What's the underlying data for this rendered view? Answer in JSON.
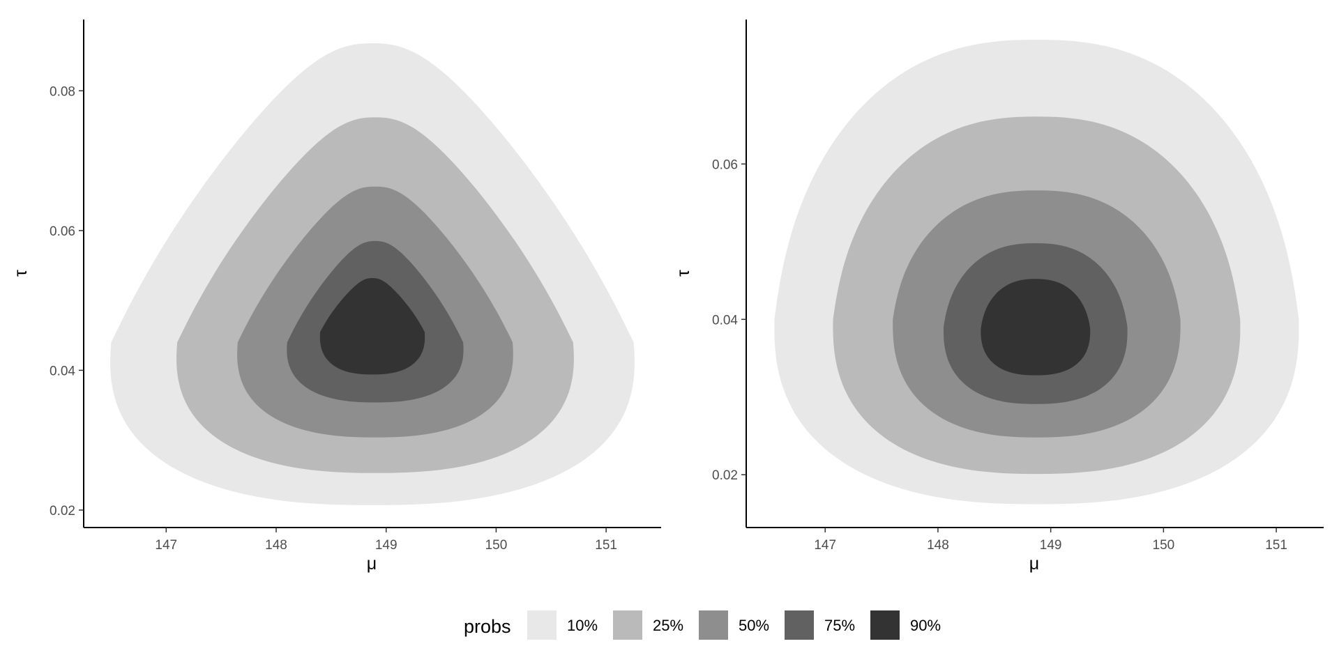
{
  "chart_data": [
    {
      "type": "contour",
      "panel": "left",
      "xlabel": "μ",
      "ylabel": "τ",
      "xlim": [
        146.25,
        151.5
      ],
      "ylim": [
        0.0175,
        0.0902
      ],
      "x_ticks": [
        147,
        148,
        149,
        150,
        151
      ],
      "x_tick_labels": [
        "147",
        "148",
        "149",
        "150",
        "151"
      ],
      "y_ticks": [
        0.02,
        0.04,
        0.06,
        0.08
      ],
      "y_tick_labels": [
        "0.02",
        "0.04",
        "0.06",
        "0.08"
      ],
      "grid": false,
      "regions": [
        {
          "prob": "10%",
          "center": [
            148.88,
            0.044
          ],
          "x_range": [
            146.5,
            151.25
          ],
          "y_range": [
            0.0207,
            0.0868
          ],
          "shape": "triangular"
        },
        {
          "prob": "25%",
          "center": [
            148.88,
            0.044
          ],
          "x_range": [
            147.1,
            150.7
          ],
          "y_range": [
            0.0253,
            0.0762
          ],
          "shape": "triangular"
        },
        {
          "prob": "50%",
          "center": [
            148.88,
            0.044
          ],
          "x_range": [
            147.65,
            150.15
          ],
          "y_range": [
            0.0304,
            0.0663
          ],
          "shape": "triangular"
        },
        {
          "prob": "75%",
          "center": [
            148.88,
            0.044
          ],
          "x_range": [
            148.1,
            149.7
          ],
          "y_range": [
            0.0354,
            0.0585
          ],
          "shape": "triangular"
        },
        {
          "prob": "90%",
          "center": [
            148.88,
            0.0455
          ],
          "x_range": [
            148.4,
            149.35
          ],
          "y_range": [
            0.0394,
            0.0532
          ],
          "shape": "triangular"
        }
      ]
    },
    {
      "type": "contour",
      "panel": "right",
      "xlabel": "μ",
      "ylabel": "τ",
      "xlim": [
        146.3,
        151.42
      ],
      "ylim": [
        0.0132,
        0.0786
      ],
      "x_ticks": [
        147,
        148,
        149,
        150,
        151
      ],
      "x_tick_labels": [
        "147",
        "148",
        "149",
        "150",
        "151"
      ],
      "y_ticks": [
        0.02,
        0.04,
        0.06
      ],
      "y_tick_labels": [
        "0.02",
        "0.04",
        "0.06"
      ],
      "grid": false,
      "regions": [
        {
          "prob": "10%",
          "center": [
            148.88,
            0.04
          ],
          "x_range": [
            146.55,
            151.2
          ],
          "y_range": [
            0.0162,
            0.076
          ],
          "shape": "rounded"
        },
        {
          "prob": "25%",
          "center": [
            148.88,
            0.04
          ],
          "x_range": [
            147.07,
            150.68
          ],
          "y_range": [
            0.0201,
            0.0661
          ],
          "shape": "rounded"
        },
        {
          "prob": "50%",
          "center": [
            148.88,
            0.04
          ],
          "x_range": [
            147.6,
            150.15
          ],
          "y_range": [
            0.0248,
            0.0566
          ],
          "shape": "rounded"
        },
        {
          "prob": "75%",
          "center": [
            148.88,
            0.039
          ],
          "x_range": [
            148.05,
            149.68
          ],
          "y_range": [
            0.0291,
            0.0498
          ],
          "shape": "rounded"
        },
        {
          "prob": "90%",
          "center": [
            148.88,
            0.0388
          ],
          "x_range": [
            148.38,
            149.35
          ],
          "y_range": [
            0.0328,
            0.0452
          ],
          "shape": "rounded"
        }
      ]
    }
  ],
  "legend": {
    "title": "probs",
    "position": "bottom",
    "items": [
      {
        "label": "10%",
        "color": "#e8e8e8"
      },
      {
        "label": "25%",
        "color": "#bababa"
      },
      {
        "label": "50%",
        "color": "#8e8e8e"
      },
      {
        "label": "75%",
        "color": "#616161"
      },
      {
        "label": "90%",
        "color": "#333333"
      }
    ]
  }
}
